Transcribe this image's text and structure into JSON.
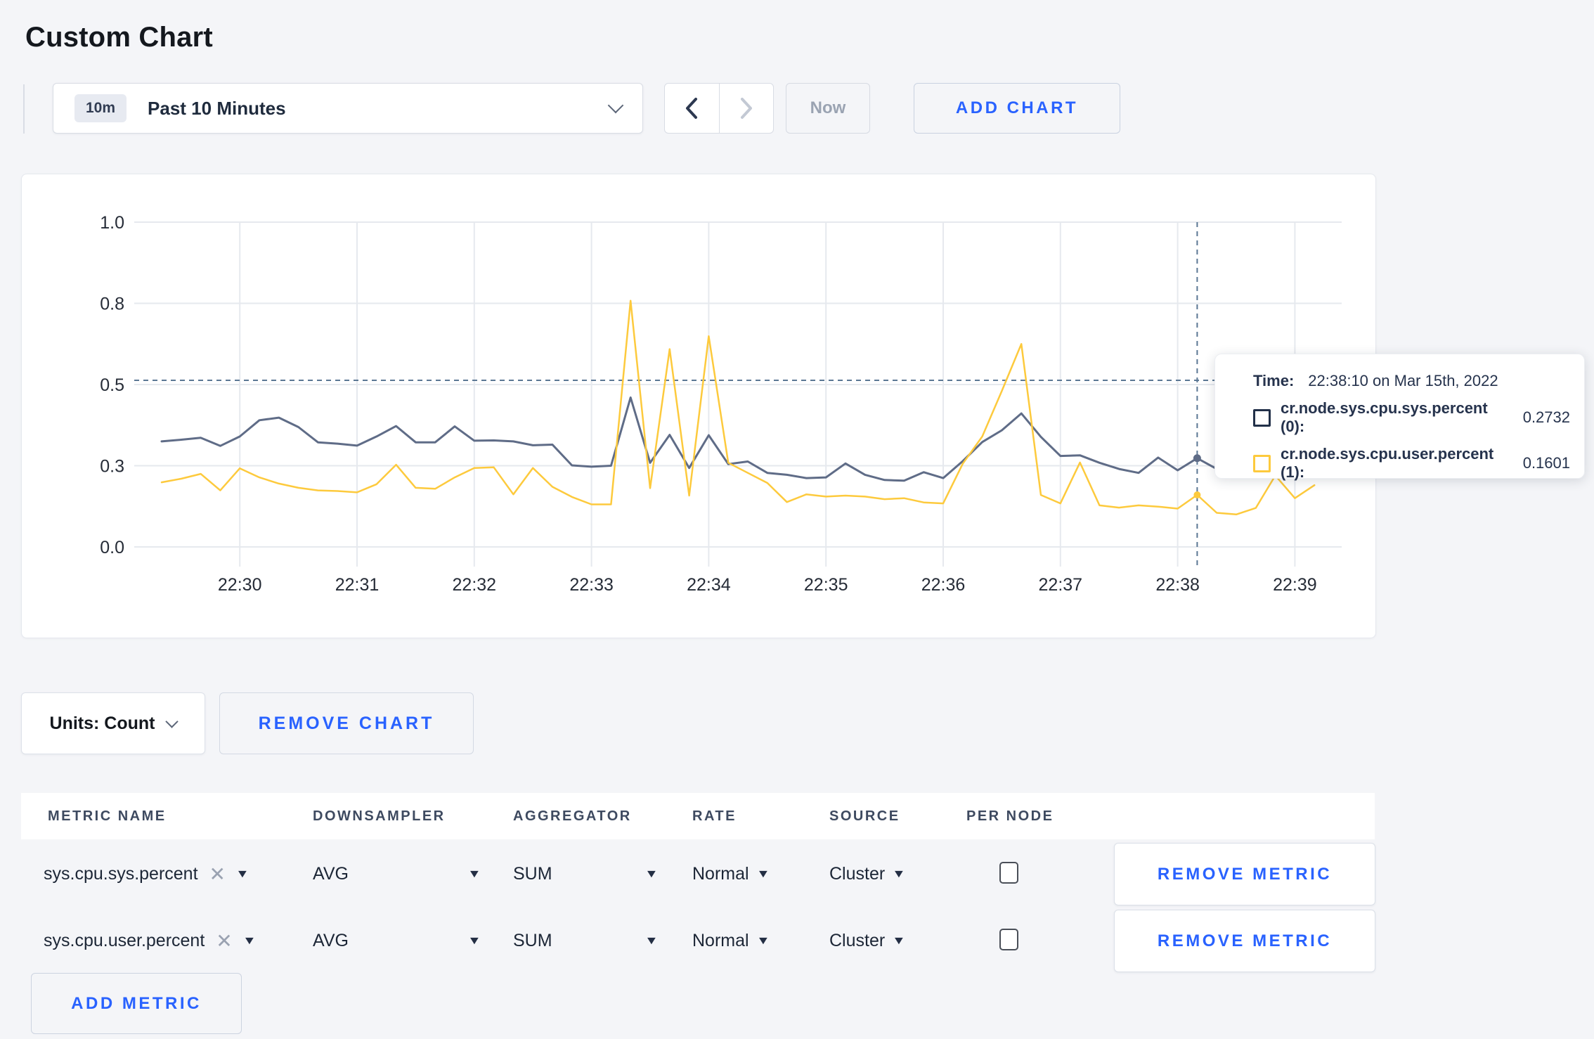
{
  "title": "Custom Chart",
  "colors": {
    "accent_blue": "#2962ff",
    "series_sys": "#5f6c87",
    "series_user": "#fdca3d",
    "page_bg": "#f4f5f8",
    "grid": "#e6e9ee",
    "crosshair": "#5b7794"
  },
  "time_controls": {
    "badge": "10m",
    "range_label": "Past 10 Minutes",
    "prev_label": "previous range",
    "next_label": "next range",
    "now_label": "Now",
    "add_chart_label": "ADD CHART"
  },
  "chart_data": {
    "type": "line",
    "title": "",
    "xlabel": "",
    "ylabel": "",
    "ylim": [
      0,
      1
    ],
    "grid": true,
    "y_tick_values": [
      0,
      0.25,
      0.5,
      0.75,
      1
    ],
    "y_tick_labels": [
      "0.0",
      "0.3",
      "0.5",
      "0.8",
      "1.0"
    ],
    "x_tick_labels": [
      "22:30",
      "22:31",
      "22:32",
      "22:33",
      "22:34",
      "22:35",
      "22:36",
      "22:37",
      "22:38",
      "22:39"
    ],
    "x_start": "22:29:20",
    "x_interval_seconds": 10,
    "x_tick_start_index": 4,
    "x_points_per_tick": 6,
    "series": [
      {
        "name": "cr.node.sys.cpu.sys.percent (0)",
        "color": "#5f6c87",
        "values": [
          0.325,
          0.33,
          0.336,
          0.311,
          0.34,
          0.39,
          0.398,
          0.369,
          0.322,
          0.318,
          0.312,
          0.34,
          0.372,
          0.322,
          0.322,
          0.371,
          0.327,
          0.328,
          0.325,
          0.313,
          0.315,
          0.251,
          0.247,
          0.25,
          0.46,
          0.259,
          0.345,
          0.243,
          0.344,
          0.255,
          0.263,
          0.228,
          0.222,
          0.212,
          0.214,
          0.257,
          0.222,
          0.206,
          0.204,
          0.23,
          0.212,
          0.264,
          0.323,
          0.359,
          0.411,
          0.339,
          0.28,
          0.282,
          0.259,
          0.24,
          0.228,
          0.275,
          0.236,
          0.2732,
          0.24,
          0.25,
          0.245,
          0.26,
          0.25,
          0.255
        ]
      },
      {
        "name": "cr.node.sys.cpu.user.percent (1)",
        "color": "#fdca3d",
        "values": [
          0.199,
          0.21,
          0.225,
          0.174,
          0.242,
          0.214,
          0.195,
          0.182,
          0.174,
          0.172,
          0.168,
          0.193,
          0.253,
          0.182,
          0.179,
          0.214,
          0.243,
          0.245,
          0.162,
          0.243,
          0.185,
          0.154,
          0.131,
          0.131,
          0.758,
          0.181,
          0.609,
          0.158,
          0.649,
          0.259,
          0.228,
          0.197,
          0.138,
          0.162,
          0.155,
          0.158,
          0.155,
          0.147,
          0.15,
          0.137,
          0.134,
          0.256,
          0.34,
          0.48,
          0.625,
          0.16,
          0.134,
          0.26,
          0.128,
          0.121,
          0.128,
          0.124,
          0.118,
          0.1601,
          0.105,
          0.1,
          0.12,
          0.22,
          0.15,
          0.19
        ]
      }
    ],
    "crosshair": {
      "point_index": 53,
      "time": "22:38:10",
      "hline_value": 0.513,
      "values": [
        0.2732,
        0.1601
      ]
    },
    "legend_position": "tooltip"
  },
  "tooltip": {
    "time_label": "Time:",
    "time_value": "22:38:10 on Mar 15th, 2022",
    "rows": [
      {
        "name": "cr.node.sys.cpu.sys.percent (0):",
        "value": "0.2732",
        "color": "#223049"
      },
      {
        "name": "cr.node.sys.cpu.user.percent (1):",
        "value": "0.1601",
        "color": "#fdca3d"
      }
    ]
  },
  "units": {
    "label": "Units: Count",
    "remove_chart_label": "REMOVE CHART"
  },
  "table": {
    "headers": {
      "metric_name": "METRIC NAME",
      "downsampler": "DOWNSAMPLER",
      "aggregator": "AGGREGATOR",
      "rate": "RATE",
      "source": "SOURCE",
      "per_node": "PER NODE"
    },
    "rows": [
      {
        "metric": "sys.cpu.sys.percent",
        "downsampler": "AVG",
        "aggregator": "SUM",
        "rate": "Normal",
        "source": "Cluster",
        "per_node_checked": false,
        "remove_label": "REMOVE METRIC"
      },
      {
        "metric": "sys.cpu.user.percent",
        "downsampler": "AVG",
        "aggregator": "SUM",
        "rate": "Normal",
        "source": "Cluster",
        "per_node_checked": false,
        "remove_label": "REMOVE METRIC"
      }
    ],
    "add_metric_label": "ADD METRIC"
  }
}
